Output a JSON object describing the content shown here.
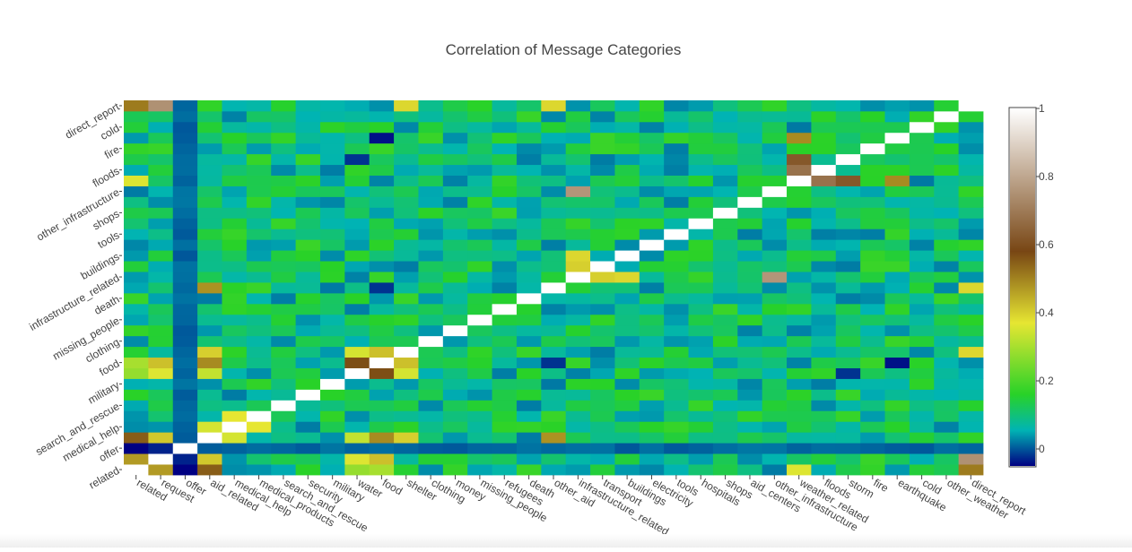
{
  "chart_data": {
    "type": "heatmap",
    "title": "Correlation of Message Categories",
    "xlabel": "",
    "ylabel": "",
    "colorscale": "earth",
    "zlim": [
      -0.05,
      1.0
    ],
    "colorbar_ticks": [
      0,
      0.2,
      0.4,
      0.6,
      0.8,
      1
    ],
    "categories": [
      "related",
      "request",
      "offer",
      "aid_related",
      "medical_help",
      "medical_products",
      "search_and_rescue",
      "security",
      "military",
      "water",
      "food",
      "shelter",
      "clothing",
      "money",
      "missing_people",
      "refugees",
      "death",
      "other_aid",
      "infrastructure_related",
      "transport",
      "buildings",
      "electricity",
      "tools",
      "hospitals",
      "shops",
      "aid_centers",
      "other_infrastructure",
      "weather_related",
      "floods",
      "storm",
      "fire",
      "earthquake",
      "cold",
      "other_weather",
      "direct_report"
    ],
    "x_tick_labels": [
      "related",
      "request",
      "offer",
      "aid_related",
      "medical_help",
      "medical_products",
      "search_and_rescue",
      "security",
      "military",
      "water",
      "food",
      "shelter",
      "clothing",
      "money",
      "missing_people",
      "refugees",
      "death",
      "other_aid",
      "infrastructure_related",
      "transport",
      "buildings",
      "electricity",
      "tools",
      "hospitals",
      "shops",
      "aid_centers",
      "other_infrastructure",
      "weather_related",
      "floods",
      "storm",
      "fire",
      "earthquake",
      "cold",
      "other_weather",
      "direct_report"
    ],
    "y_tick_labels": [
      "related",
      "offer",
      "medical_help",
      "search_and_rescue",
      "military",
      "food",
      "clothing",
      "missing_people",
      "death",
      "infrastructure_related",
      "buildings",
      "tools",
      "shops",
      "other_infrastructure",
      "floods",
      "fire",
      "cold",
      "direct_report"
    ],
    "grid": false,
    "legend": "colorbar-right"
  }
}
